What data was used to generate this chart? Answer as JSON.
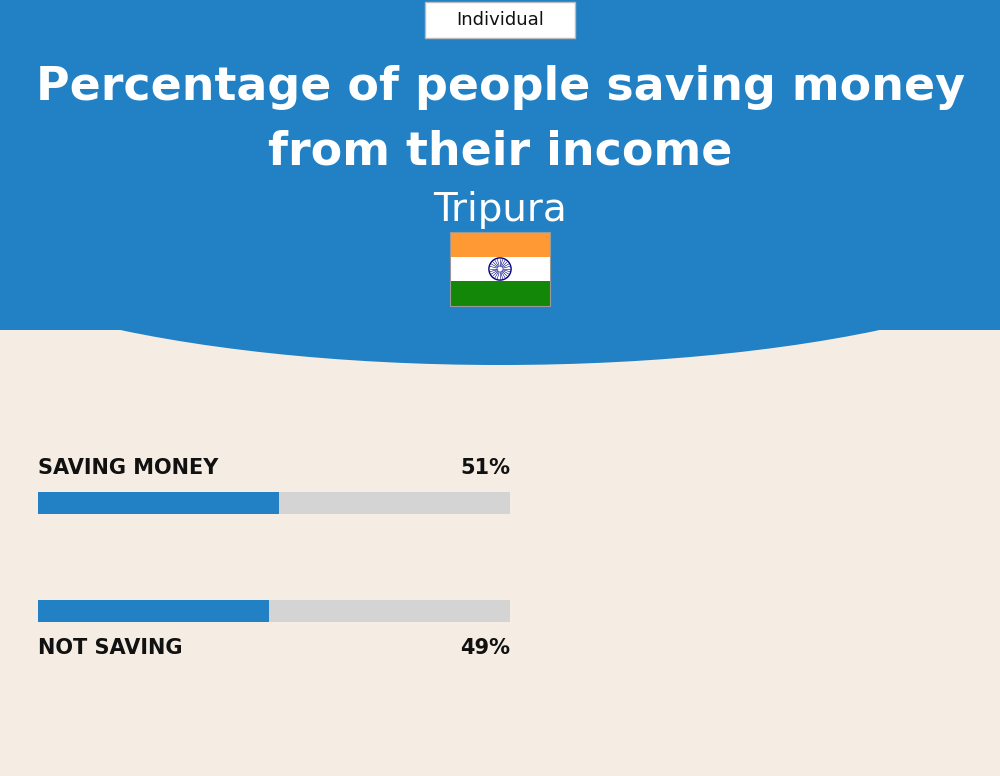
{
  "title_line1": "Percentage of people saving money",
  "title_line2": "from their income",
  "subtitle": "Tripura",
  "tab_label": "Individual",
  "bar1_label": "SAVING MONEY",
  "bar1_value": 51,
  "bar1_pct": "51%",
  "bar2_label": "NOT SAVING",
  "bar2_value": 49,
  "bar2_pct": "49%",
  "bg_color": "#f5ede3",
  "header_bg_color": "#2181c4",
  "bar_fill_color": "#2181c4",
  "bar_empty_color": "#d4d4d4",
  "title_color": "#ffffff",
  "subtitle_color": "#ffffff",
  "label_color": "#111111",
  "tab_bg_color": "#ffffff",
  "tab_text_color": "#111111",
  "fig_width": 10.0,
  "fig_height": 7.76,
  "dpi": 100
}
